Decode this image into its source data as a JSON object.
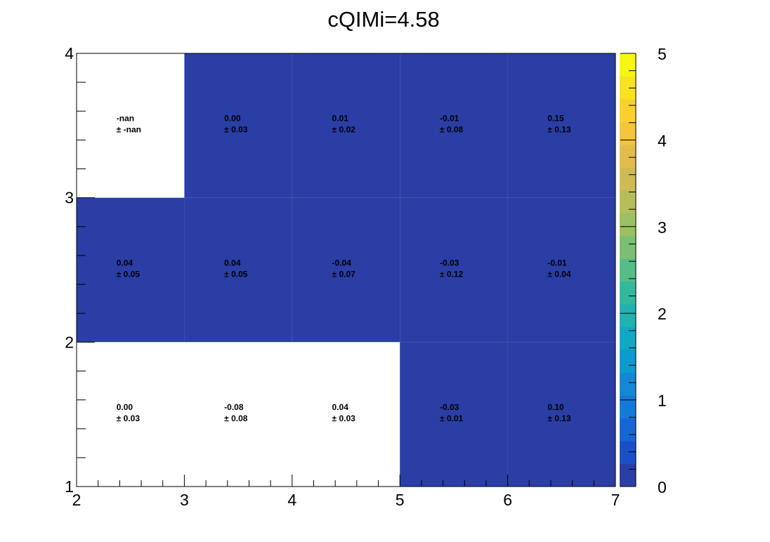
{
  "chart_data": {
    "type": "heatmap",
    "title": "cQIMi=4.58",
    "xlabel": "",
    "ylabel": "",
    "xlim": [
      2,
      7
    ],
    "ylim": [
      1,
      4
    ],
    "zlim": [
      0,
      5
    ],
    "x_ticks": [
      "2",
      "3",
      "4",
      "5",
      "6",
      "7"
    ],
    "y_ticks": [
      "1",
      "2",
      "3",
      "4"
    ],
    "z_ticks": [
      "0",
      "1",
      "2",
      "3",
      "4",
      "5"
    ],
    "palette": [
      "#2a3ea6",
      "#1a4fc8",
      "#1666d6",
      "#147ad9",
      "#1488d4",
      "#0b9bd0",
      "#10a8c5",
      "#1fb2b0",
      "#32b89c",
      "#55bd87",
      "#7abf73",
      "#99c061",
      "#b4be58",
      "#cfba55",
      "#e2bd4a",
      "#f4c43a",
      "#fbcf2c",
      "#f8e31e",
      "#f6f60f"
    ],
    "empty_color": "#ffffff",
    "cells": [
      {
        "x0": 2,
        "x1": 3,
        "y0": 3,
        "y1": 4,
        "value": "-nan",
        "error": "-nan",
        "filled": false
      },
      {
        "x0": 3,
        "x1": 4,
        "y0": 3,
        "y1": 4,
        "value": "0.00",
        "error": "0.03",
        "filled": true
      },
      {
        "x0": 4,
        "x1": 5,
        "y0": 3,
        "y1": 4,
        "value": "0.01",
        "error": "0.02",
        "filled": true
      },
      {
        "x0": 5,
        "x1": 6,
        "y0": 3,
        "y1": 4,
        "value": "-0.01",
        "error": "0.08",
        "filled": true
      },
      {
        "x0": 6,
        "x1": 7,
        "y0": 3,
        "y1": 4,
        "value": "0.15",
        "error": "0.13",
        "filled": true
      },
      {
        "x0": 2,
        "x1": 3,
        "y0": 2,
        "y1": 3,
        "value": "0.04",
        "error": "0.05",
        "filled": true
      },
      {
        "x0": 3,
        "x1": 4,
        "y0": 2,
        "y1": 3,
        "value": "0.04",
        "error": "0.05",
        "filled": true
      },
      {
        "x0": 4,
        "x1": 5,
        "y0": 2,
        "y1": 3,
        "value": "-0.04",
        "error": "0.07",
        "filled": true
      },
      {
        "x0": 5,
        "x1": 6,
        "y0": 2,
        "y1": 3,
        "value": "-0.03",
        "error": "0.12",
        "filled": true
      },
      {
        "x0": 6,
        "x1": 7,
        "y0": 2,
        "y1": 3,
        "value": "-0.01",
        "error": "0.04",
        "filled": true
      },
      {
        "x0": 2,
        "x1": 3,
        "y0": 1,
        "y1": 2,
        "value": "0.00",
        "error": "0.03",
        "filled": false
      },
      {
        "x0": 3,
        "x1": 4,
        "y0": 1,
        "y1": 2,
        "value": "-0.08",
        "error": "0.08",
        "filled": false
      },
      {
        "x0": 4,
        "x1": 5,
        "y0": 1,
        "y1": 2,
        "value": "0.04",
        "error": "0.03",
        "filled": false
      },
      {
        "x0": 5,
        "x1": 6,
        "y0": 1,
        "y1": 2,
        "value": "-0.03",
        "error": "0.01",
        "filled": true
      },
      {
        "x0": 6,
        "x1": 7,
        "y0": 1,
        "y1": 2,
        "value": "0.10",
        "error": "0.13",
        "filled": true
      }
    ],
    "grid": false,
    "legend": "colorbar-right"
  }
}
